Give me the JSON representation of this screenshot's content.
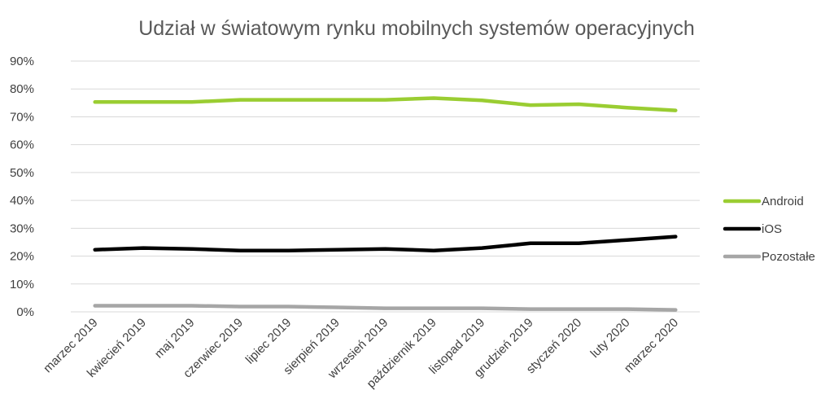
{
  "chart_data": {
    "type": "line",
    "title": "Udział w światowym rynku mobilnych systemów operacyjnych",
    "xlabel": "",
    "ylabel": "",
    "ylim": [
      0,
      0.9
    ],
    "yticks": [
      "0%",
      "10%",
      "20%",
      "30%",
      "40%",
      "50%",
      "60%",
      "70%",
      "80%",
      "90%"
    ],
    "grid": true,
    "legend_position": "right",
    "categories": [
      "marzec 2019",
      "kwiecień 2019",
      "maj 2019",
      "czerwiec 2019",
      "lipiec 2019",
      "sierpień 2019",
      "wrzesień 2019",
      "październik 2019",
      "listopad 2019",
      "grudzień 2019",
      "styczeń 2020",
      "luty 2020",
      "marzec 2020"
    ],
    "series": [
      {
        "name": "Android",
        "color": "#9acd32",
        "values": [
          0.753,
          0.753,
          0.753,
          0.761,
          0.761,
          0.761,
          0.761,
          0.767,
          0.759,
          0.742,
          0.745,
          0.733,
          0.723
        ]
      },
      {
        "name": "iOS",
        "color": "#000000",
        "values": [
          0.223,
          0.229,
          0.226,
          0.22,
          0.22,
          0.223,
          0.226,
          0.22,
          0.229,
          0.246,
          0.246,
          0.258,
          0.27
        ]
      },
      {
        "name": "Pozostałe",
        "color": "#a6a6a6",
        "values": [
          0.022,
          0.022,
          0.022,
          0.019,
          0.019,
          0.016,
          0.013,
          0.013,
          0.013,
          0.01,
          0.01,
          0.01,
          0.007
        ]
      }
    ]
  }
}
